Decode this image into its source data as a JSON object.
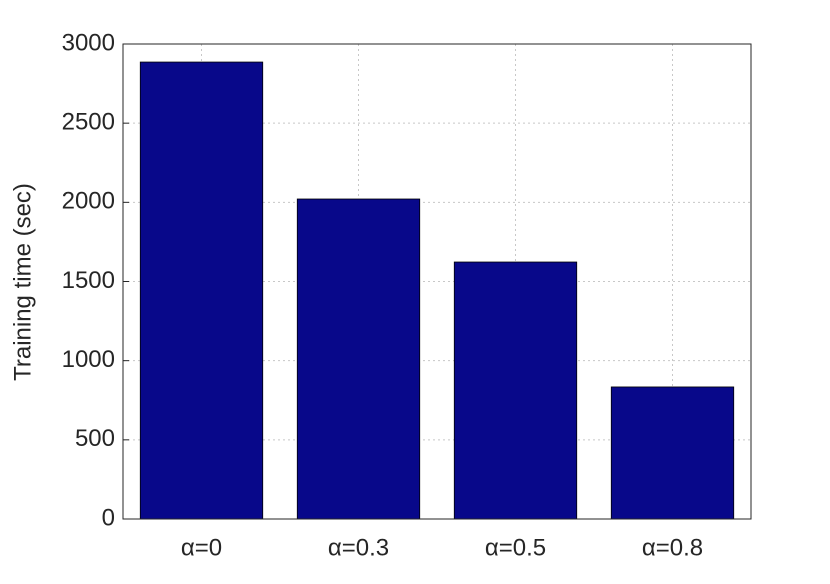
{
  "chart_data": {
    "type": "bar",
    "y_label": "Training time (sec)",
    "categories": [
      "α=0",
      "α=0.3",
      "α=0.5",
      "α=0.8"
    ],
    "values": [
      2886,
      2021,
      1623,
      834
    ],
    "color": "#08088a",
    "ylim": [
      0,
      3000
    ],
    "yticks": [
      0,
      500,
      1000,
      1500,
      2000,
      2500,
      3000
    ],
    "grid": true
  }
}
